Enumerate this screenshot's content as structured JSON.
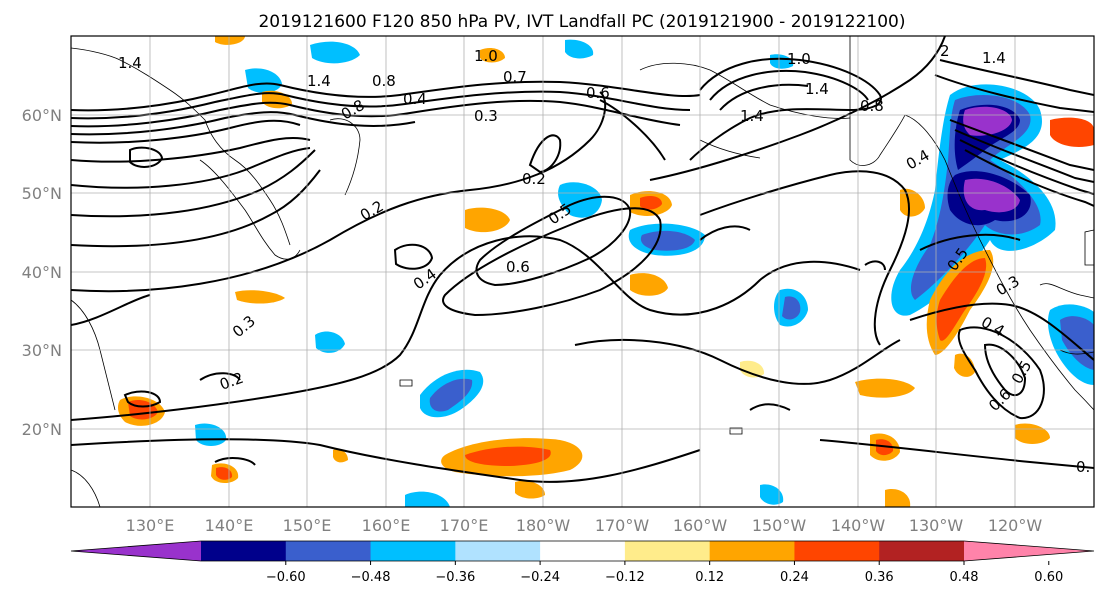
{
  "title": "2019121600 F120 850 hPa PV, IVT Landfall PC (2019121900 - 2019122100)",
  "lat_labels": [
    "60°N",
    "50°N",
    "40°N",
    "30°N",
    "20°N"
  ],
  "lon_labels": [
    "130°E",
    "140°E",
    "150°E",
    "160°E",
    "170°E",
    "180°W",
    "170°W",
    "160°W",
    "150°W",
    "140°W",
    "130°W",
    "120°W"
  ],
  "colorbar": {
    "colors": [
      "#9932cc",
      "#00008b",
      "#3a5fcd",
      "#00bfff",
      "#b0e2ff",
      "#ffffff",
      "#ffec8b",
      "#ffa500",
      "#ff4500",
      "#b22222",
      "#ff83aa"
    ],
    "tick_labels": [
      "−0.60",
      "−0.48",
      "−0.36",
      "−0.24",
      "−0.12",
      "0.12",
      "0.24",
      "0.36",
      "0.48",
      "0.60"
    ]
  },
  "contour_labels": [
    "1.4",
    "1.0",
    "0.7",
    "0.6",
    "0.3",
    "1.4",
    "0.8",
    "0.4",
    "1.0",
    "1.4",
    "0.8",
    "1.4",
    "0.2",
    "0.2",
    "0.5",
    "0.6",
    "0.4",
    "0.3",
    "0.2",
    "0.5",
    "0.3",
    "0.4",
    "0.5",
    "0.6",
    "0.8",
    "0.4",
    "2",
    "1.4",
    "0."
  ]
}
